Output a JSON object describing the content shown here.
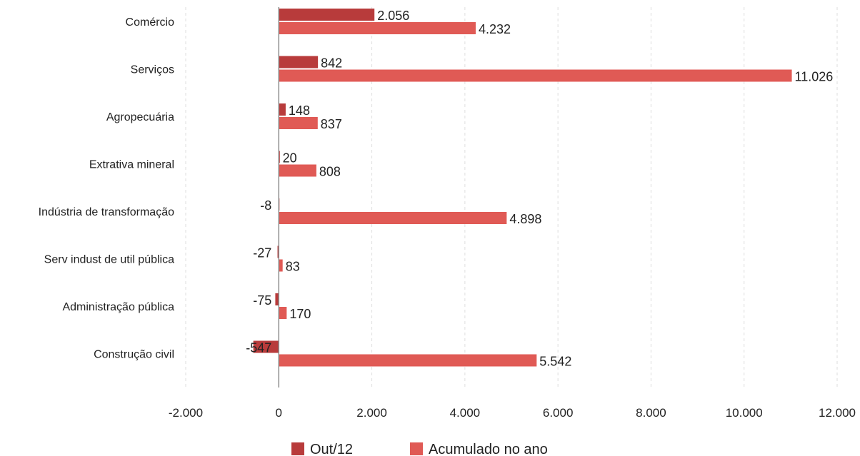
{
  "chart_data": {
    "type": "bar",
    "orientation": "horizontal",
    "categories": [
      "Comércio",
      "Serviços",
      "Agropecuária",
      "Extrativa mineral",
      "Indústria de transformação",
      "Serv indust de util pública",
      "Administração pública",
      "Construção civil"
    ],
    "series": [
      {
        "name": "Out/12",
        "color": "#b83b3b",
        "values": [
          2056,
          842,
          148,
          20,
          -8,
          -27,
          -75,
          -547
        ],
        "labels": [
          "2.056",
          "842",
          "148",
          "20",
          "-8",
          "-27",
          "-75",
          "-547"
        ]
      },
      {
        "name": "Acumulado no ano",
        "color": "#e05a55",
        "values": [
          4232,
          11026,
          837,
          808,
          4898,
          83,
          170,
          5542
        ],
        "labels": [
          "4.232",
          "11.026",
          "837",
          "808",
          "4.898",
          "83",
          "170",
          "5.542"
        ]
      }
    ],
    "xlim": [
      -2000,
      12000
    ],
    "xticks": [
      -2000,
      0,
      2000,
      4000,
      6000,
      8000,
      10000,
      12000
    ],
    "xtick_labels": [
      "-2.000",
      "0",
      "2.000",
      "4.000",
      "6.000",
      "8.000",
      "10.000",
      "12.000"
    ],
    "grid": "vertical dashed",
    "legend": "bottom-center",
    "title": "",
    "xlabel": "",
    "ylabel": ""
  }
}
